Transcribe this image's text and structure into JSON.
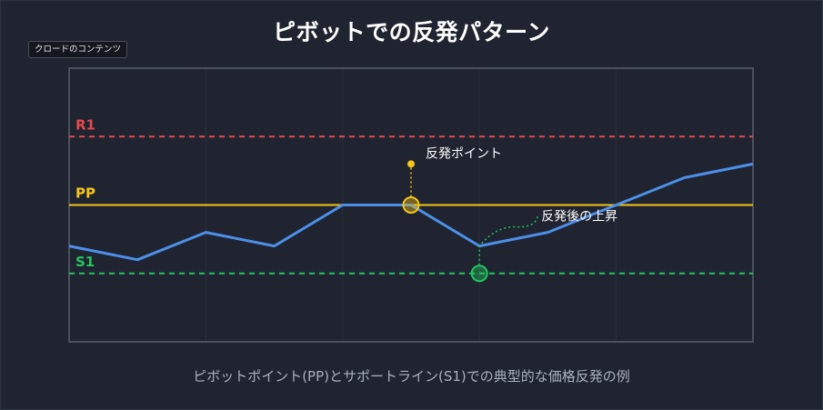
{
  "badge": "クロードのコンテンツ",
  "title": "ピボットでの反発パターン",
  "caption": "ピボットポイント(PP)とサポートライン(S1)での典型的な価格反発の例",
  "colors": {
    "background": "#1f2430",
    "r1": "#e5484d",
    "pp": "#f5c518",
    "s1": "#22c55e",
    "price": "#4d8fe8"
  },
  "chart_data": {
    "type": "line",
    "title": "ピボットでの反発パターン",
    "xlim": [
      0,
      10
    ],
    "ylim": [
      0,
      100
    ],
    "grid": true,
    "levels": [
      {
        "name": "R1",
        "value": 75,
        "style": "dashed",
        "color": "#e5484d"
      },
      {
        "name": "PP",
        "value": 50,
        "style": "solid",
        "color": "#f5c518"
      },
      {
        "name": "S1",
        "value": 25,
        "style": "dashed",
        "color": "#22c55e"
      }
    ],
    "series": [
      {
        "color": "#4d8fe8",
        "x": [
          0,
          1,
          2,
          3,
          4,
          5,
          6,
          7,
          8,
          9,
          10
        ],
        "y": [
          35,
          30,
          40,
          35,
          50,
          50,
          35,
          40,
          50,
          60,
          65
        ]
      }
    ],
    "annotations": [
      {
        "text": "反発ポイント",
        "x": 5,
        "y": 50,
        "color": "#f5c518"
      },
      {
        "text": "反発後の上昇",
        "x": 6,
        "y": 25,
        "color": "#22c55e"
      }
    ]
  }
}
